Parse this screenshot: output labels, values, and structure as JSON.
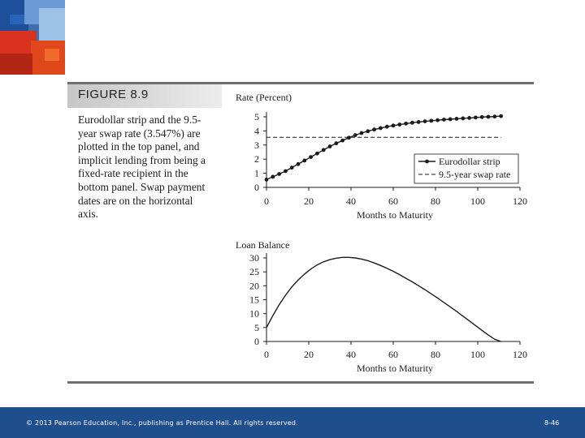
{
  "figure": {
    "label": "FIGURE  8.9",
    "caption": "Eurodollar strip and the 9.5-year swap rate (3.547%) are plotted in the top panel, and implicit lending from being a fixed-rate recipient in the bottom panel. Swap payment dates are on the horizontal axis."
  },
  "footer": {
    "copyright": "© 2013 Pearson Education, Inc., publishing as Prentice Hall.  All rights reserved.",
    "slide_number": "8-46"
  },
  "colors": {
    "footer_bar": "#1f4e8c",
    "ink": "#1b1b1b"
  },
  "chart_data": [
    {
      "type": "line",
      "title": "",
      "ylabel": "Rate (Percent)",
      "xlabel": "Months to Maturity",
      "xlim": [
        0,
        120
      ],
      "ylim": [
        0,
        5
      ],
      "xticks": [
        0,
        20,
        40,
        60,
        80,
        100,
        120
      ],
      "yticks": [
        0,
        1,
        2,
        3,
        4,
        5
      ],
      "legend_position": "lower-right",
      "series": [
        {
          "name": "Eurodollar strip",
          "style": "solid-with-markers",
          "x": [
            0,
            3,
            6,
            9,
            12,
            15,
            18,
            21,
            24,
            27,
            30,
            33,
            36,
            39,
            42,
            45,
            48,
            51,
            54,
            57,
            60,
            63,
            66,
            69,
            72,
            75,
            78,
            81,
            84,
            87,
            90,
            93,
            96,
            99,
            102,
            105,
            108,
            111
          ],
          "y": [
            0.55,
            0.75,
            0.95,
            1.15,
            1.4,
            1.65,
            1.9,
            2.15,
            2.4,
            2.65,
            2.9,
            3.12,
            3.32,
            3.52,
            3.7,
            3.85,
            3.98,
            4.1,
            4.2,
            4.3,
            4.38,
            4.45,
            4.52,
            4.58,
            4.63,
            4.68,
            4.72,
            4.76,
            4.8,
            4.83,
            4.86,
            4.89,
            4.92,
            4.95,
            4.98,
            5.0,
            5.02,
            5.05
          ]
        },
        {
          "name": "9.5-year swap rate",
          "style": "dashed",
          "x": [
            0,
            111
          ],
          "y": [
            3.547,
            3.547
          ]
        }
      ]
    },
    {
      "type": "line",
      "title": "",
      "ylabel": "Loan Balance",
      "xlabel": "Months to Maturity",
      "xlim": [
        0,
        120
      ],
      "ylim": [
        0,
        30
      ],
      "xticks": [
        0,
        20,
        40,
        60,
        80,
        100,
        120
      ],
      "yticks": [
        0,
        5,
        10,
        15,
        20,
        25,
        30
      ],
      "series": [
        {
          "style": "solid",
          "x": [
            0,
            3,
            6,
            9,
            12,
            15,
            18,
            21,
            24,
            27,
            30,
            33,
            36,
            39,
            42,
            45,
            48,
            51,
            54,
            57,
            60,
            63,
            66,
            69,
            72,
            75,
            78,
            81,
            84,
            87,
            90,
            93,
            96,
            99,
            102,
            105,
            108,
            111
          ],
          "y": [
            5.0,
            9.3,
            13.2,
            16.6,
            19.6,
            22.1,
            24.2,
            26.0,
            27.5,
            28.6,
            29.4,
            29.9,
            30.2,
            30.2,
            30.0,
            29.6,
            29.0,
            28.2,
            27.3,
            26.3,
            25.2,
            24.0,
            22.7,
            21.4,
            20.0,
            18.6,
            17.1,
            15.6,
            14.0,
            12.4,
            10.8,
            9.1,
            7.4,
            5.7,
            4.0,
            2.3,
            0.8,
            0.0
          ]
        }
      ]
    }
  ]
}
